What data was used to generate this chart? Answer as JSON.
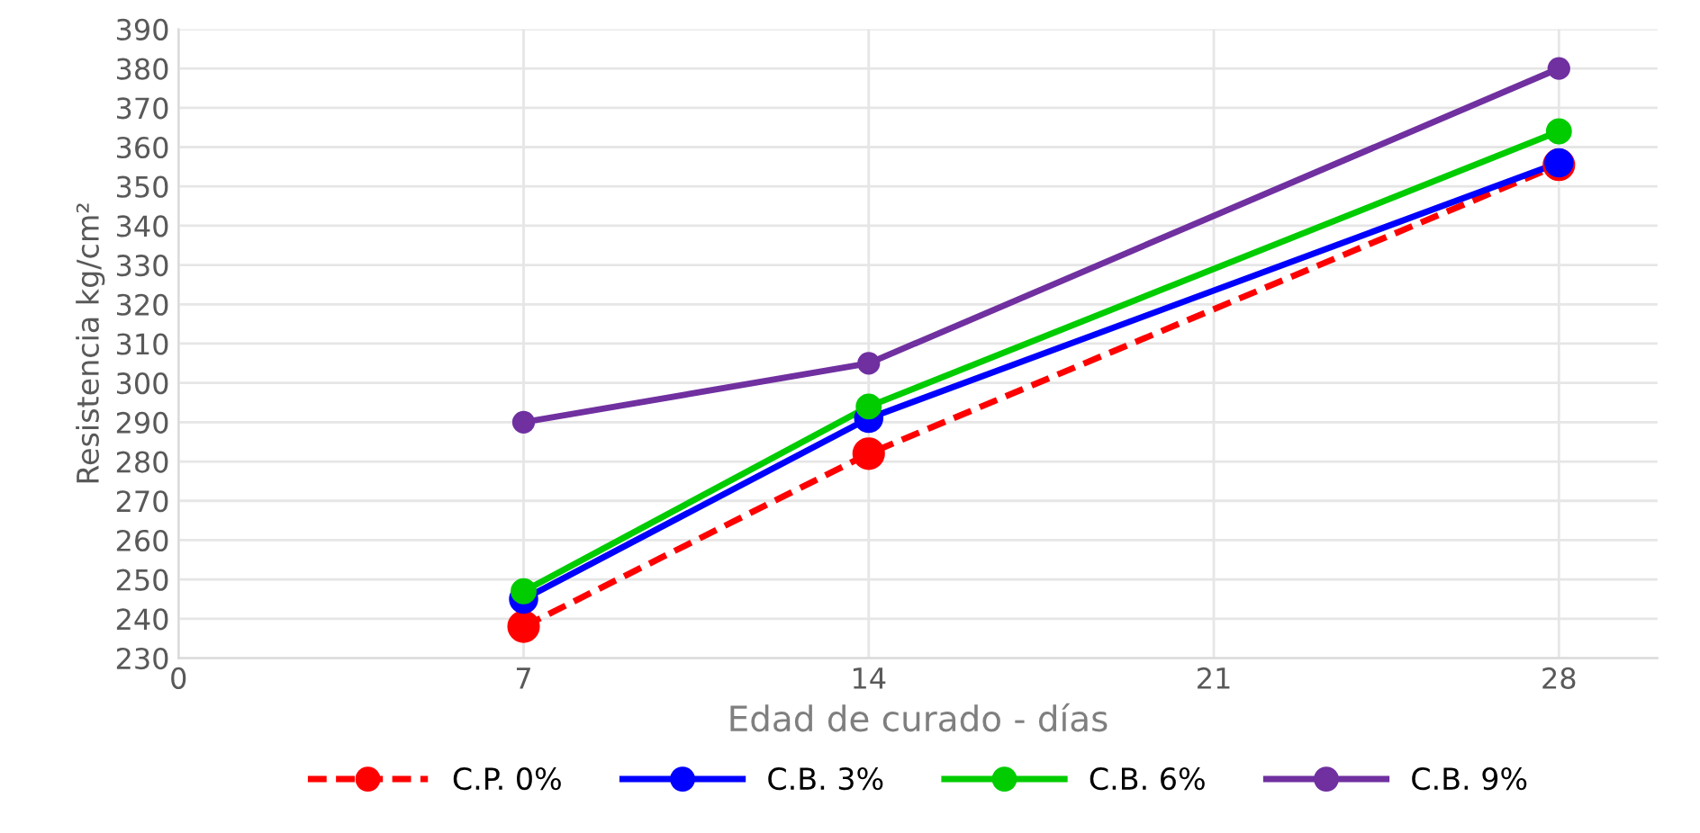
{
  "chart_data": {
    "type": "line",
    "xlabel": "Edad de curado - días",
    "ylabel": "Resistencia kg/cm²",
    "x": [
      7,
      14,
      28
    ],
    "series": [
      {
        "name": "C.P. 0%",
        "color": "#ff0000",
        "values": [
          238,
          282,
          355.5
        ],
        "line_style": "dashed"
      },
      {
        "name": "C.B. 3%",
        "color": "#0000ff",
        "values": [
          245,
          291,
          356
        ]
      },
      {
        "name": "C.B. 6%",
        "color": "#00cc00",
        "values": [
          247,
          294,
          364
        ]
      },
      {
        "name": "C.B. 9%",
        "color": "#7030a0",
        "values": [
          290,
          305,
          380
        ]
      }
    ],
    "xlim": [
      0,
      30
    ],
    "xticks": [
      0,
      7,
      14,
      21,
      28
    ],
    "ylim": [
      230,
      390
    ],
    "yticks": [
      230,
      240,
      250,
      260,
      270,
      280,
      290,
      300,
      310,
      320,
      330,
      340,
      350,
      360,
      370,
      380,
      390
    ],
    "grid": true,
    "legend": "bottom",
    "marker": "circle",
    "line_style": "solid"
  }
}
